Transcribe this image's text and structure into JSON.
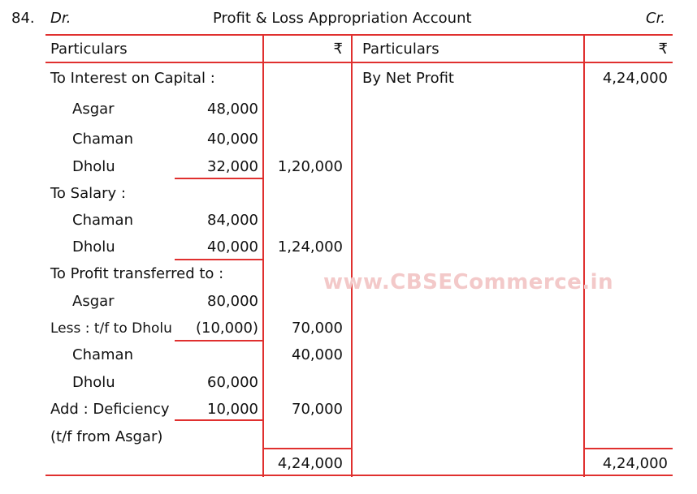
{
  "question_number": "84.",
  "header": {
    "dr": "Dr.",
    "title": "Profit & Loss Appropriation Account",
    "cr": "Cr."
  },
  "columns": {
    "particulars_left": "Particulars",
    "amount_left": "₹",
    "particulars_right": "Particulars",
    "amount_right": "₹"
  },
  "debit": {
    "interest_heading": "To Interest on Capital :",
    "interest_rows": [
      {
        "name": "Asgar",
        "amount": "48,000"
      },
      {
        "name": "Chaman",
        "amount": "40,000"
      },
      {
        "name": "Dholu",
        "amount": "32,000"
      }
    ],
    "interest_total": "1,20,000",
    "salary_heading": "To Salary :",
    "salary_rows": [
      {
        "name": "Chaman",
        "amount": "84,000"
      },
      {
        "name": "Dholu",
        "amount": "40,000"
      }
    ],
    "salary_total": "1,24,000",
    "profit_heading": "To Profit transferred to :",
    "asgar": {
      "name": "Asgar",
      "amount": "80,000"
    },
    "less": {
      "label": "Less : t/f to Dholu",
      "amount": "(10,000)",
      "total": "70,000"
    },
    "chaman": {
      "name": "Chaman",
      "total": "40,000"
    },
    "dholu": {
      "name": "Dholu",
      "amount": "60,000"
    },
    "add": {
      "label": "Add : Deficiency",
      "amount": "10,000",
      "total": "70,000"
    },
    "add_note": "(t/f from Asgar)",
    "grand_total": "4,24,000"
  },
  "credit": {
    "net_profit_label": "By Net Profit",
    "net_profit_amount": "4,24,000",
    "grand_total": "4,24,000"
  },
  "watermark": "www.CBSECommerce.in"
}
